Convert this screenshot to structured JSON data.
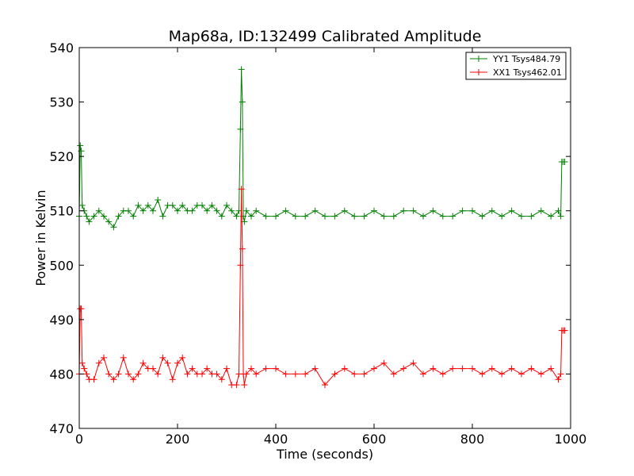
{
  "chart_data": {
    "type": "line",
    "title": "Map68a, ID:132499 Calibrated Amplitude",
    "xlabel": "Time (seconds)",
    "ylabel": "Power in Kelvin",
    "xlim": [
      0,
      1000
    ],
    "ylim": [
      470,
      540
    ],
    "xticks": [
      "0",
      "200",
      "400",
      "600",
      "800",
      "1000"
    ],
    "yticks": [
      "470",
      "480",
      "490",
      "500",
      "510",
      "520",
      "530",
      "540"
    ],
    "grid": false,
    "legend_position": "top-right",
    "marker": "plus",
    "series": [
      {
        "name": "YY1 Tsys484.79",
        "color": "#008000",
        "x": [
          0,
          2,
          4,
          6,
          10,
          15,
          20,
          30,
          40,
          50,
          60,
          70,
          80,
          90,
          100,
          110,
          120,
          130,
          140,
          150,
          160,
          170,
          180,
          190,
          200,
          210,
          220,
          230,
          240,
          250,
          260,
          270,
          280,
          290,
          300,
          310,
          320,
          325,
          328,
          330,
          332,
          334,
          336,
          340,
          350,
          360,
          380,
          400,
          420,
          440,
          460,
          480,
          500,
          520,
          540,
          560,
          580,
          600,
          620,
          640,
          660,
          680,
          700,
          720,
          740,
          760,
          780,
          800,
          820,
          840,
          860,
          880,
          900,
          920,
          940,
          960,
          975,
          980,
          982,
          985,
          988
        ],
        "y": [
          509,
          522,
          521,
          511,
          510,
          509,
          508,
          509,
          510,
          509,
          508,
          507,
          509,
          510,
          510,
          509,
          511,
          510,
          511,
          510,
          512,
          509,
          511,
          511,
          510,
          511,
          510,
          510,
          511,
          511,
          510,
          511,
          510,
          509,
          511,
          510,
          509,
          510,
          525,
          536,
          530,
          509,
          508,
          510,
          509,
          510,
          509,
          509,
          510,
          509,
          509,
          510,
          509,
          509,
          510,
          509,
          509,
          510,
          509,
          509,
          510,
          510,
          509,
          510,
          509,
          509,
          510,
          510,
          509,
          510,
          509,
          510,
          509,
          509,
          510,
          509,
          510,
          509,
          519,
          519,
          519
        ]
      },
      {
        "name": "XX1 Tsys462.01",
        "color": "#ff0000",
        "x": [
          0,
          2,
          4,
          6,
          10,
          15,
          20,
          30,
          40,
          50,
          60,
          70,
          80,
          90,
          100,
          110,
          120,
          130,
          140,
          150,
          160,
          170,
          180,
          190,
          200,
          210,
          220,
          230,
          240,
          250,
          260,
          270,
          280,
          290,
          300,
          310,
          320,
          325,
          328,
          330,
          332,
          334,
          336,
          340,
          350,
          360,
          380,
          400,
          420,
          440,
          460,
          480,
          500,
          520,
          540,
          560,
          580,
          600,
          620,
          640,
          660,
          680,
          700,
          720,
          740,
          760,
          780,
          800,
          820,
          840,
          860,
          880,
          900,
          920,
          940,
          960,
          975,
          980,
          982,
          985,
          988
        ],
        "y": [
          480,
          492,
          492,
          482,
          481,
          480,
          479,
          479,
          482,
          483,
          480,
          479,
          480,
          483,
          480,
          479,
          480,
          482,
          481,
          481,
          480,
          483,
          482,
          479,
          482,
          483,
          480,
          481,
          480,
          480,
          481,
          480,
          480,
          479,
          481,
          478,
          478,
          480,
          500,
          514,
          503,
          480,
          478,
          480,
          481,
          480,
          481,
          481,
          480,
          480,
          480,
          481,
          478,
          480,
          481,
          480,
          480,
          481,
          482,
          480,
          481,
          482,
          480,
          481,
          480,
          481,
          481,
          481,
          480,
          481,
          480,
          481,
          480,
          481,
          480,
          481,
          479,
          480,
          488,
          488,
          488
        ]
      }
    ]
  }
}
